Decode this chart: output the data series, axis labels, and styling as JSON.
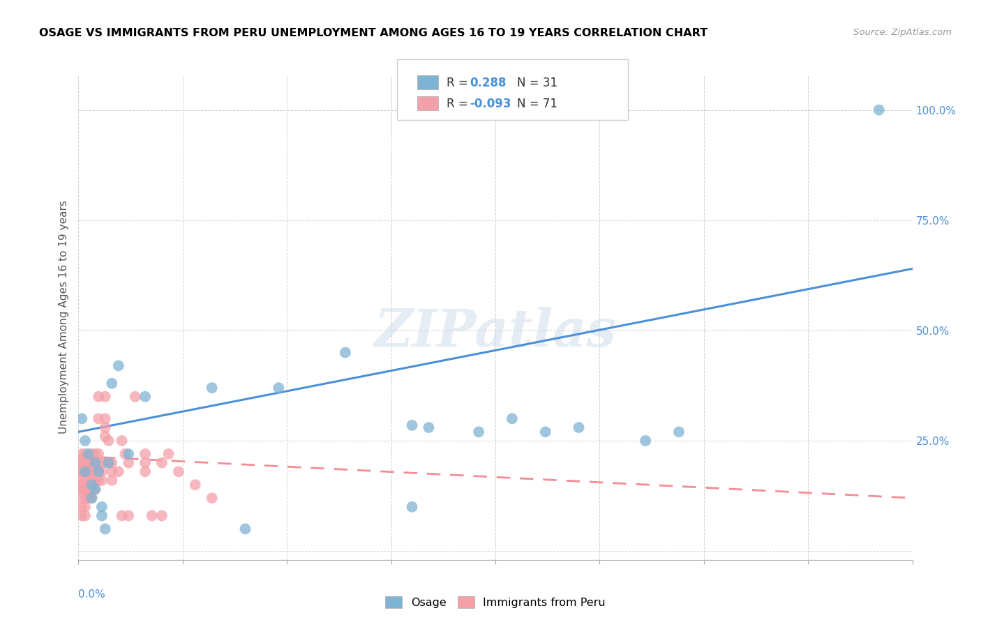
{
  "title": "OSAGE VS IMMIGRANTS FROM PERU UNEMPLOYMENT AMONG AGES 16 TO 19 YEARS CORRELATION CHART",
  "source": "Source: ZipAtlas.com",
  "ylabel": "Unemployment Among Ages 16 to 19 years",
  "xmin": 0.0,
  "xmax": 0.25,
  "ymin": -0.02,
  "ymax": 1.08,
  "yticks": [
    0.0,
    0.25,
    0.5,
    0.75,
    1.0
  ],
  "ytick_labels": [
    "",
    "25.0%",
    "50.0%",
    "75.0%",
    "100.0%"
  ],
  "osage_color": "#7fb3d3",
  "peru_color": "#f4a0a8",
  "blue_line_color": "#4a90d9",
  "pink_line_color": "#f48c96",
  "watermark": "ZIPatlas",
  "legend_r1": "0.288",
  "legend_n1": "31",
  "legend_r2": "-0.093",
  "legend_n2": "71",
  "osage_x": [
    0.001,
    0.002,
    0.003,
    0.002,
    0.004,
    0.004,
    0.005,
    0.006,
    0.005,
    0.007,
    0.007,
    0.008,
    0.009,
    0.01,
    0.012,
    0.015,
    0.02,
    0.04,
    0.05,
    0.06,
    0.08,
    0.1,
    0.1,
    0.105,
    0.12,
    0.13,
    0.14,
    0.15,
    0.17,
    0.18,
    0.24
  ],
  "osage_y": [
    0.3,
    0.25,
    0.22,
    0.18,
    0.15,
    0.12,
    0.2,
    0.18,
    0.14,
    0.1,
    0.08,
    0.05,
    0.2,
    0.38,
    0.42,
    0.22,
    0.35,
    0.37,
    0.05,
    0.37,
    0.45,
    0.285,
    0.1,
    0.28,
    0.27,
    0.3,
    0.27,
    0.28,
    0.25,
    0.27,
    1.0
  ],
  "peru_x": [
    0.0,
    0.0,
    0.0,
    0.0,
    0.001,
    0.001,
    0.001,
    0.001,
    0.001,
    0.001,
    0.001,
    0.001,
    0.002,
    0.002,
    0.002,
    0.002,
    0.002,
    0.002,
    0.002,
    0.002,
    0.003,
    0.003,
    0.003,
    0.003,
    0.003,
    0.004,
    0.004,
    0.004,
    0.004,
    0.004,
    0.004,
    0.005,
    0.005,
    0.005,
    0.005,
    0.005,
    0.006,
    0.006,
    0.006,
    0.006,
    0.006,
    0.006,
    0.007,
    0.007,
    0.007,
    0.008,
    0.008,
    0.008,
    0.008,
    0.009,
    0.009,
    0.01,
    0.01,
    0.01,
    0.012,
    0.013,
    0.013,
    0.014,
    0.015,
    0.015,
    0.017,
    0.02,
    0.02,
    0.02,
    0.022,
    0.025,
    0.025,
    0.027,
    0.03,
    0.035,
    0.04
  ],
  "peru_y": [
    0.2,
    0.18,
    0.15,
    0.14,
    0.22,
    0.2,
    0.18,
    0.16,
    0.14,
    0.12,
    0.1,
    0.08,
    0.22,
    0.2,
    0.18,
    0.16,
    0.14,
    0.12,
    0.1,
    0.08,
    0.2,
    0.18,
    0.16,
    0.14,
    0.12,
    0.22,
    0.2,
    0.18,
    0.16,
    0.14,
    0.12,
    0.22,
    0.2,
    0.18,
    0.16,
    0.14,
    0.22,
    0.2,
    0.18,
    0.16,
    0.3,
    0.35,
    0.2,
    0.18,
    0.16,
    0.3,
    0.28,
    0.35,
    0.26,
    0.2,
    0.25,
    0.2,
    0.18,
    0.16,
    0.18,
    0.25,
    0.08,
    0.22,
    0.2,
    0.08,
    0.35,
    0.22,
    0.2,
    0.18,
    0.08,
    0.2,
    0.08,
    0.22,
    0.18,
    0.15,
    0.12
  ],
  "blue_line": [
    [
      0.0,
      0.25
    ],
    [
      0.27,
      0.64
    ]
  ],
  "pink_line": [
    [
      0.0,
      0.25
    ],
    [
      0.215,
      0.12
    ]
  ]
}
